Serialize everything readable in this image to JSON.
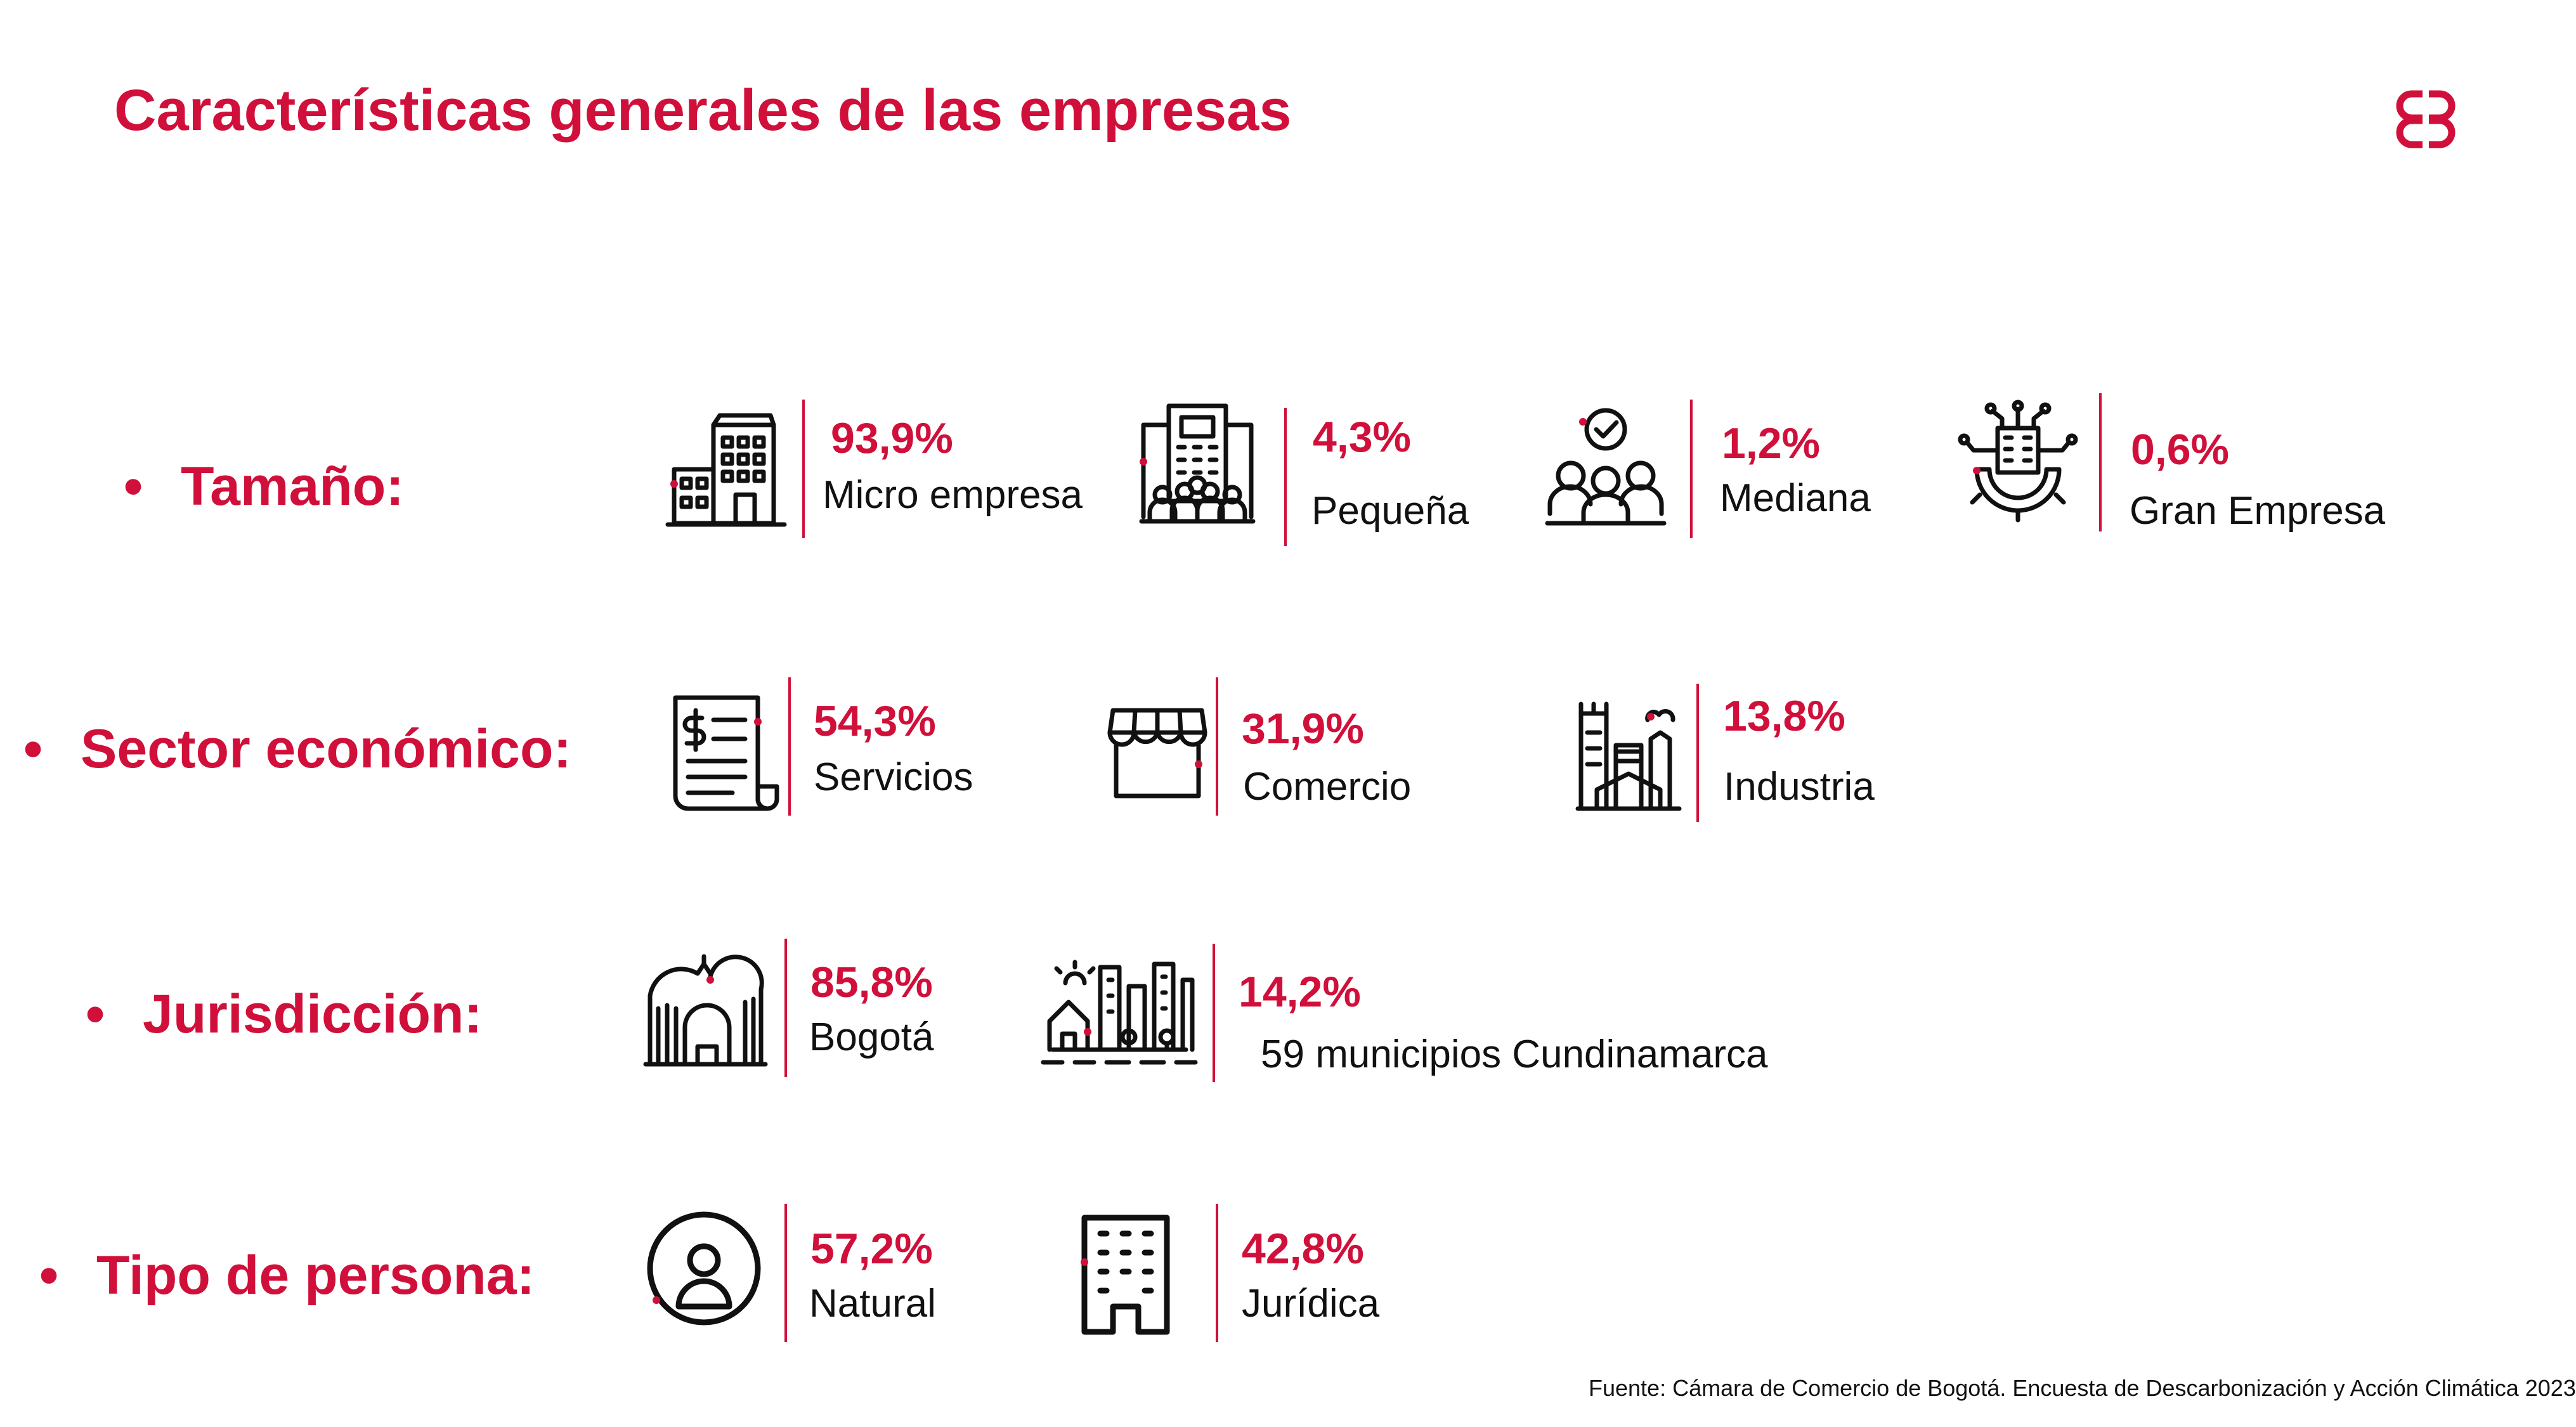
{
  "title": "Características generales de las empresas",
  "colors": {
    "accent": "#d0103a",
    "text": "#111111"
  },
  "logo": {
    "icon": "brand-logo-icon"
  },
  "rows": [
    {
      "label": "Tamaño:",
      "items": [
        {
          "pct": "93,9%",
          "label": "Micro empresa",
          "icon": "small-building-icon"
        },
        {
          "pct": "4,3%",
          "label": "Pequeña",
          "icon": "office-building-people-icon"
        },
        {
          "pct": "1,2%",
          "label": "Mediana",
          "icon": "team-check-icon"
        },
        {
          "pct": "0,6%",
          "label": "Gran Empresa",
          "icon": "building-gear-network-icon"
        }
      ]
    },
    {
      "label": "Sector económico:",
      "items": [
        {
          "pct": "54,3%",
          "label": "Servicios",
          "icon": "invoice-dollar-icon"
        },
        {
          "pct": "31,9%",
          "label": "Comercio",
          "icon": "store-awning-icon"
        },
        {
          "pct": "13,8%",
          "label": "Industria",
          "icon": "factory-icon"
        }
      ]
    },
    {
      "label": "Jurisdicción:",
      "items": [
        {
          "pct": "85,8%",
          "label": "Bogotá",
          "icon": "city-landmark-icon"
        },
        {
          "pct": "14,2%",
          "label": "59 municipios Cundinamarca",
          "icon": "town-skyline-icon"
        }
      ]
    },
    {
      "label": "Tipo de persona:",
      "items": [
        {
          "pct": "57,2%",
          "label": "Natural",
          "icon": "person-circle-icon"
        },
        {
          "pct": "42,8%",
          "label": "Jurídica",
          "icon": "company-building-icon"
        }
      ]
    }
  ],
  "footer": "Fuente: Cámara de Comercio de Bogotá. Encuesta de Descarbonización y Acción Climática 2023"
}
